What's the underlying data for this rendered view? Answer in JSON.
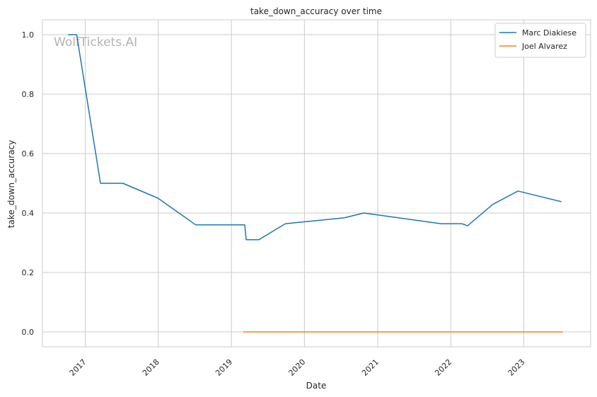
{
  "chart_data": {
    "type": "line",
    "title": "take_down_accuracy over time",
    "xlabel": "Date",
    "ylabel": "take_down_accuracy",
    "watermark": "WolfTickets.AI",
    "xlim": [
      "2016-06-01",
      "2023-12-01"
    ],
    "ylim": [
      -0.05,
      1.05
    ],
    "yticks": [
      0.0,
      0.2,
      0.4,
      0.6,
      0.8,
      1.0
    ],
    "ytick_labels": [
      "0.0",
      "0.2",
      "0.4",
      "0.6",
      "0.8",
      "1.0"
    ],
    "xticks": [
      "2017-01-01",
      "2018-01-01",
      "2019-01-01",
      "2020-01-01",
      "2021-01-01",
      "2022-01-01",
      "2023-01-01"
    ],
    "xtick_labels": [
      "2017",
      "2018",
      "2019",
      "2020",
      "2021",
      "2022",
      "2023"
    ],
    "grid": true,
    "legend_position": "top-right",
    "series": [
      {
        "name": "Marc Diakiese",
        "color": "#1f77b4",
        "points": [
          [
            "2016-10-07",
            1.0
          ],
          [
            "2016-11-19",
            1.0
          ],
          [
            "2017-03-18",
            0.5
          ],
          [
            "2017-07-08",
            0.5
          ],
          [
            "2017-12-30",
            0.45
          ],
          [
            "2018-07-07",
            0.36
          ],
          [
            "2019-03-09",
            0.36
          ],
          [
            "2019-03-16",
            0.31
          ],
          [
            "2019-05-18",
            0.31
          ],
          [
            "2019-09-28",
            0.364
          ],
          [
            "2020-07-19",
            0.384
          ],
          [
            "2020-10-24",
            0.4
          ],
          [
            "2021-11-13",
            0.364
          ],
          [
            "2022-02-26",
            0.364
          ],
          [
            "2022-03-26",
            0.357
          ],
          [
            "2022-07-30",
            0.429
          ],
          [
            "2022-12-03",
            0.474
          ],
          [
            "2023-07-08",
            0.438
          ]
        ]
      },
      {
        "name": "Joel Alvarez",
        "color": "#ff7f0e",
        "points": [
          [
            "2019-03-02",
            0.0
          ],
          [
            "2019-05-18",
            0.0
          ],
          [
            "2020-02-29",
            0.0
          ],
          [
            "2020-07-26",
            0.0
          ],
          [
            "2021-04-17",
            0.0
          ],
          [
            "2021-12-11",
            0.0
          ],
          [
            "2022-06-18",
            0.0
          ],
          [
            "2023-01-21",
            0.0
          ],
          [
            "2023-07-15",
            0.0
          ]
        ]
      }
    ]
  }
}
